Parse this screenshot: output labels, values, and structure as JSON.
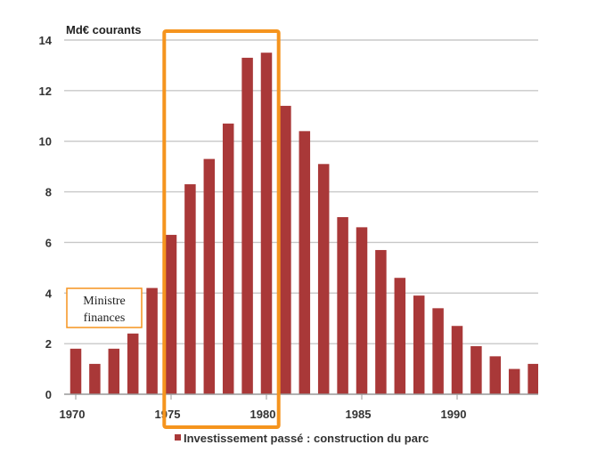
{
  "chart_data": {
    "type": "bar",
    "x": [
      1970,
      1971,
      1972,
      1973,
      1974,
      1975,
      1976,
      1977,
      1978,
      1979,
      1980,
      1981,
      1982,
      1983,
      1984,
      1985,
      1986,
      1987,
      1988,
      1989,
      1990,
      1991,
      1992,
      1993,
      1994
    ],
    "values": [
      1.8,
      1.2,
      1.8,
      2.4,
      4.2,
      6.3,
      8.3,
      9.3,
      10.7,
      13.3,
      13.5,
      11.4,
      10.4,
      9.1,
      7.0,
      6.6,
      5.7,
      4.6,
      3.9,
      3.4,
      2.7,
      1.9,
      1.5,
      1.0,
      1.2
    ],
    "series": [
      {
        "name": "Investissement passé : construction du parc",
        "color": "#a93838"
      }
    ],
    "y_unit_label": "Md€ courants",
    "y_ticks": [
      "0",
      "2",
      "4",
      "6",
      "8",
      "10",
      "12",
      "14"
    ],
    "x_ticks": [
      "1970",
      "1975",
      "1980",
      "1985",
      "1990"
    ],
    "ylim": [
      0,
      14
    ],
    "grid": "horizontal",
    "legend_position": "bottom",
    "highlight": {
      "from": 1974.5,
      "to": 1980.5,
      "color": "#f5941e"
    },
    "annotation": {
      "lines": [
        "Ministre",
        "finances"
      ],
      "border_color": "#f5941e"
    }
  }
}
